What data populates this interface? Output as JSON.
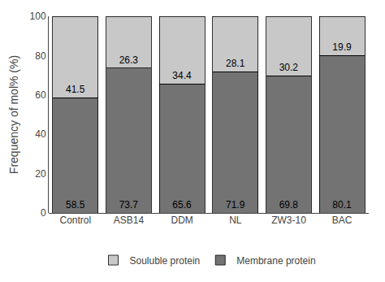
{
  "chart_data": {
    "type": "bar",
    "stacked": true,
    "ylabel": "Frequency of mol% (%)",
    "categories": [
      "Control",
      "ASB14",
      "DDM",
      "NL",
      "ZW3-10",
      "BAC"
    ],
    "series": [
      {
        "name": "Membrane protein",
        "color": "#737373",
        "values": [
          58.5,
          73.7,
          65.6,
          71.9,
          69.8,
          80.1
        ]
      },
      {
        "name": "Souluble protein",
        "color": "#c8c8c8",
        "values": [
          41.5,
          26.3,
          34.4,
          28.1,
          30.2,
          19.9
        ]
      }
    ],
    "ylim": [
      0,
      100
    ],
    "yticks": [
      0,
      20,
      40,
      60,
      80,
      100
    ],
    "data_labels": true,
    "legend": "bottom",
    "grid": false
  }
}
